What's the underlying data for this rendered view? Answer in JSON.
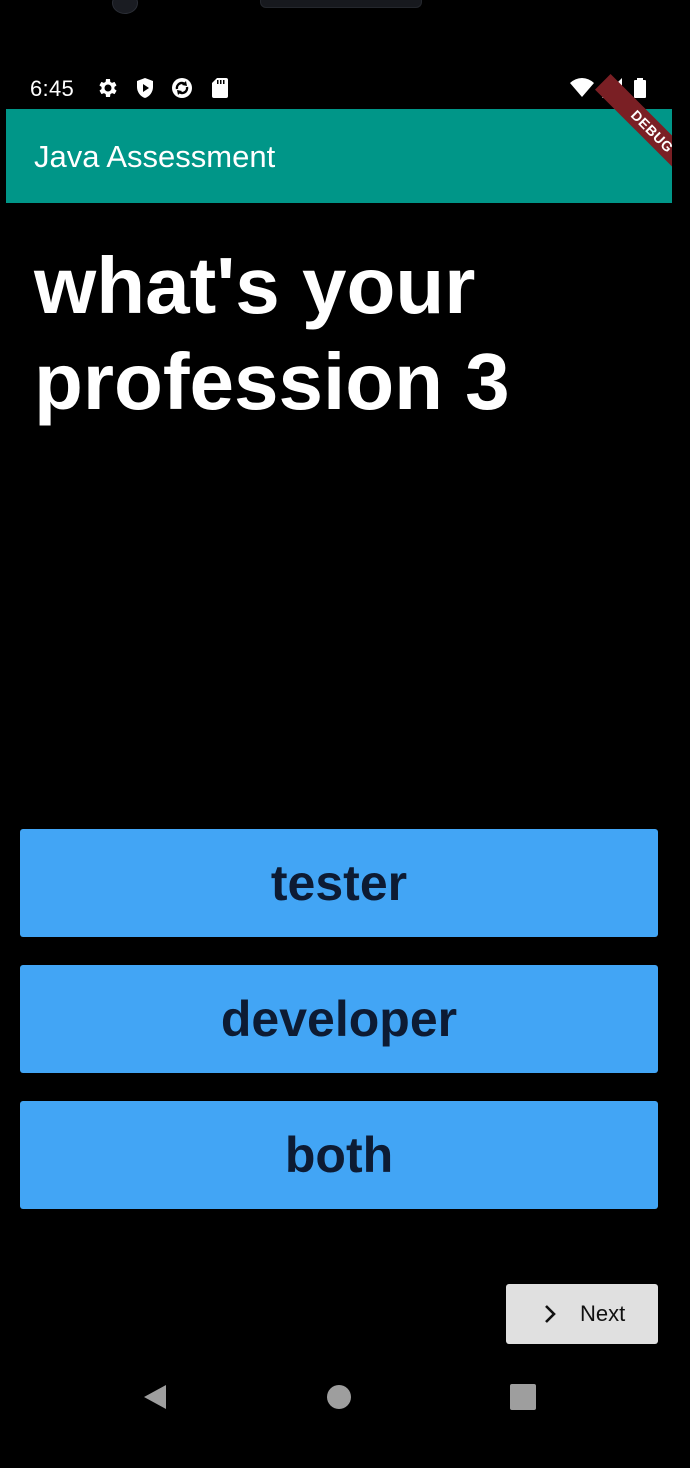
{
  "status_bar": {
    "time": "6:45",
    "icons": [
      "gear-icon",
      "shield-icon",
      "sync-icon",
      "sd-card-icon",
      "wifi-icon",
      "signal-icon",
      "battery-icon"
    ]
  },
  "app_bar": {
    "title": "Java Assessment",
    "debug_banner": "DEBUG",
    "color": "#009688"
  },
  "question": {
    "text": "what's your profession 3"
  },
  "answers": [
    {
      "label": "tester"
    },
    {
      "label": "developer"
    },
    {
      "label": "both"
    }
  ],
  "answer_color": "#42a5f5",
  "next_button": {
    "label": "Next",
    "icon": "chevron-right-icon"
  },
  "nav_bar": {
    "icons": [
      "back-icon",
      "home-icon",
      "recents-icon"
    ]
  }
}
